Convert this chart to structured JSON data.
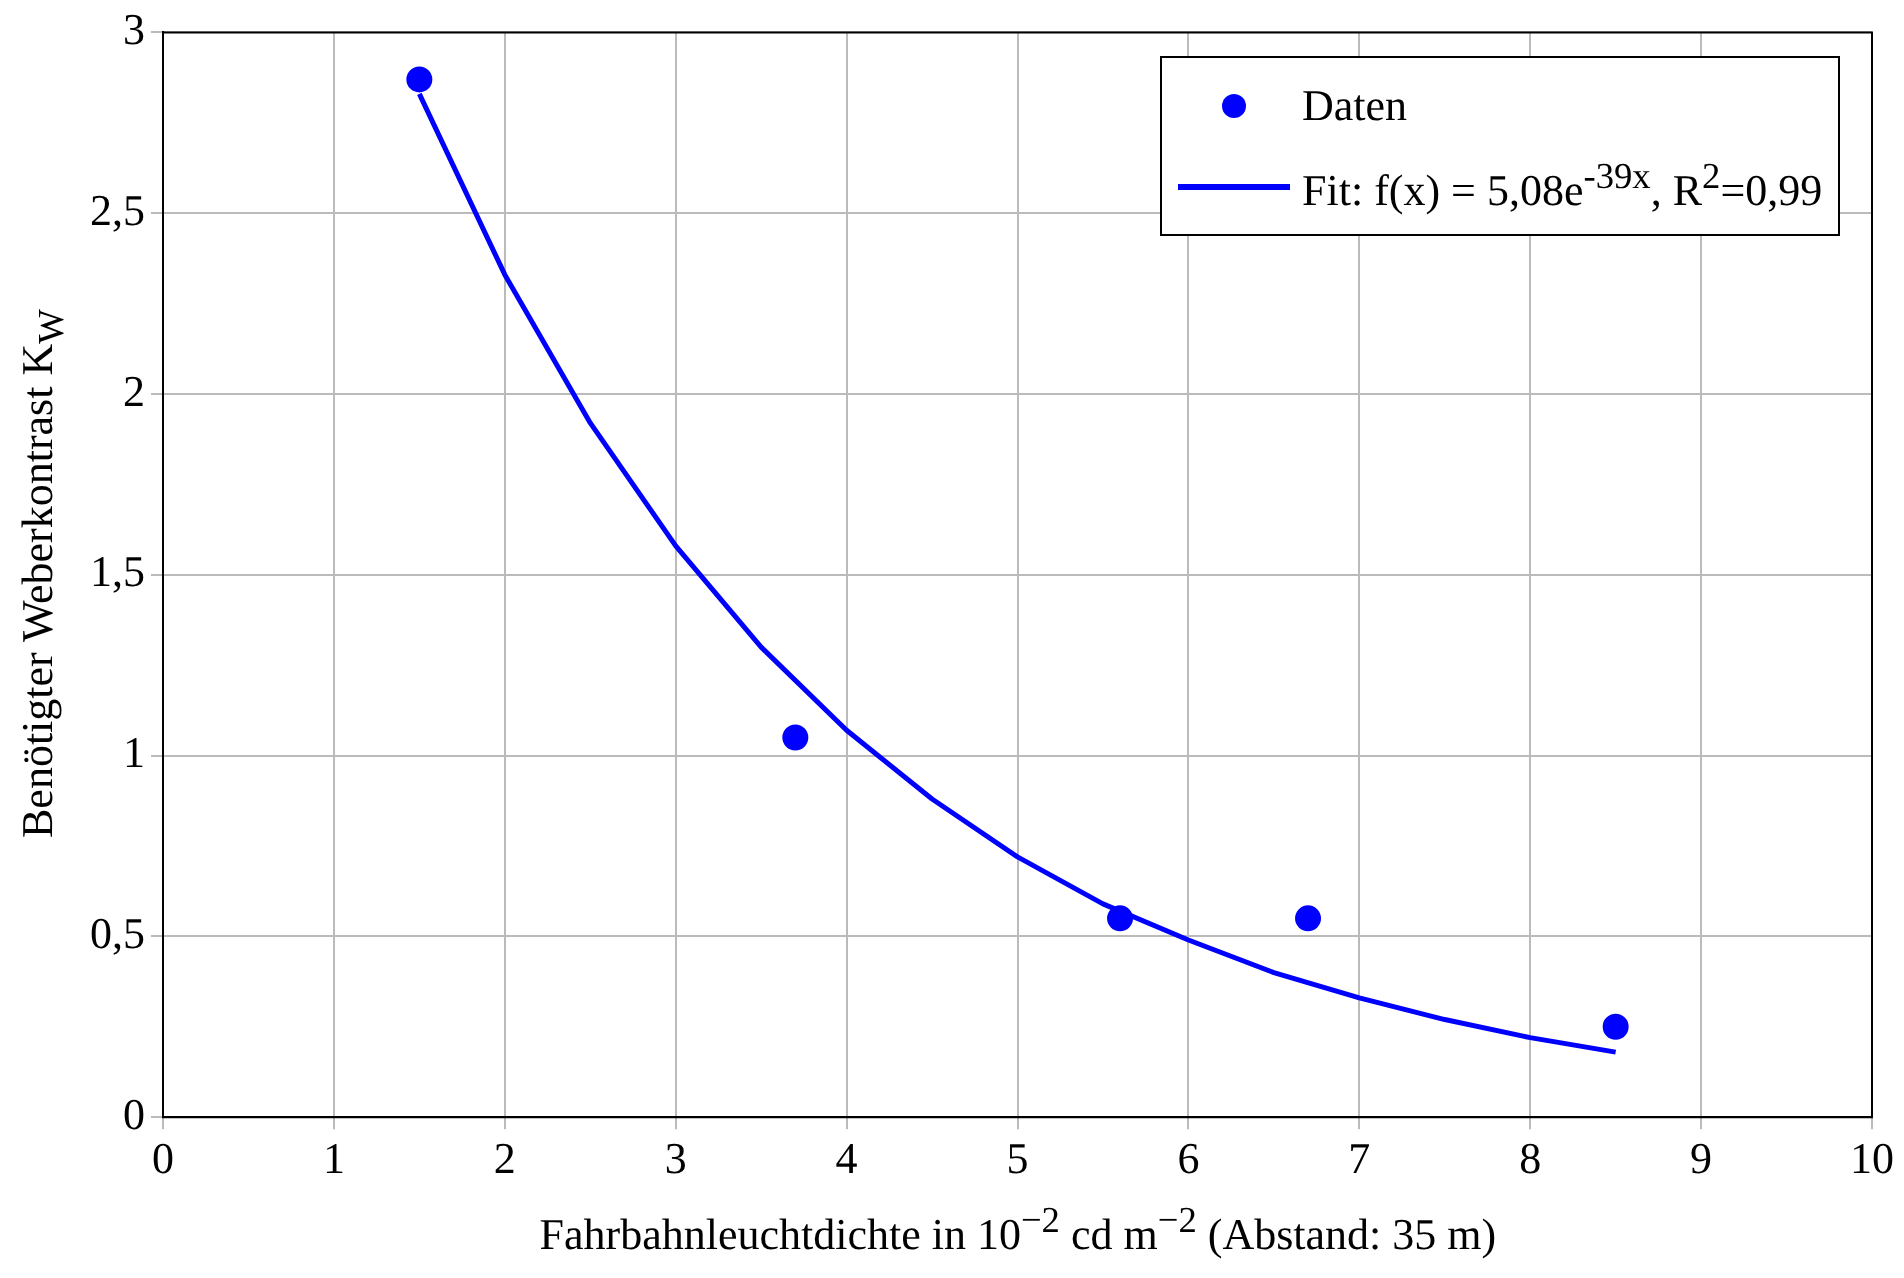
{
  "chart_data": {
    "type": "scatter",
    "xlabel": "Fahrbahnleuchtdichte in 10$^{−2}$ cd m$^{−2}$ (Abstand: 35 m)",
    "ylabel": "Benötigter Weberkontrast K$_{W}$",
    "xlim": [
      0,
      10
    ],
    "xticks": [
      0,
      1,
      2,
      3,
      4,
      5,
      6,
      7,
      8,
      9,
      10
    ],
    "ylim": [
      0,
      3
    ],
    "yticks": [
      0,
      {
        "value": 0.5,
        "label": "0,5"
      },
      1,
      {
        "value": 1.5,
        "label": "1,5"
      },
      2,
      {
        "value": 2.5,
        "label": "2,5"
      },
      3
    ],
    "grid": true,
    "legend": "top right",
    "series": [
      {
        "name": "Daten",
        "color": "#0000ff",
        "marker": "circle",
        "x": [
          1.5,
          3.7,
          5.6,
          6.7,
          8.5
        ],
        "values": [
          2.87,
          1.05,
          0.55,
          0.55,
          0.25
        ]
      },
      {
        "name": "Fit: f(x) = 5,08e$^{-39x}$, R$^{2}$=0,99",
        "type": "line",
        "color": "#0000ff",
        "marker": "none",
        "line_style": "solid",
        "x": [
          1.5,
          2,
          2.5,
          3,
          3.5,
          4,
          4.5,
          5,
          5.5,
          6,
          6.5,
          7,
          7.5,
          8,
          8.5
        ],
        "values": [
          2.83,
          2.33,
          1.92,
          1.58,
          1.3,
          1.07,
          0.88,
          0.72,
          0.59,
          0.49,
          0.4,
          0.33,
          0.27,
          0.22,
          0.18
        ]
      }
    ]
  }
}
